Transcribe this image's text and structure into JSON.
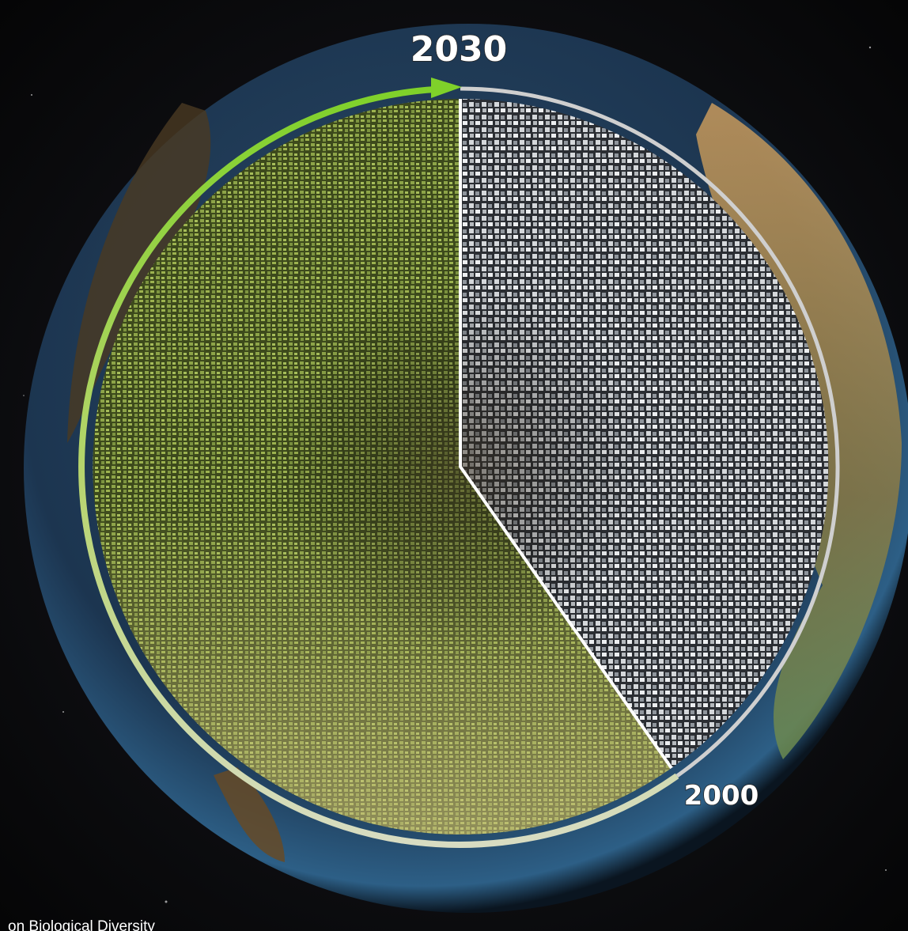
{
  "labels": {
    "top_year": "2030",
    "bottom_year": "2000"
  },
  "source": "on Biological Diversity"
}
